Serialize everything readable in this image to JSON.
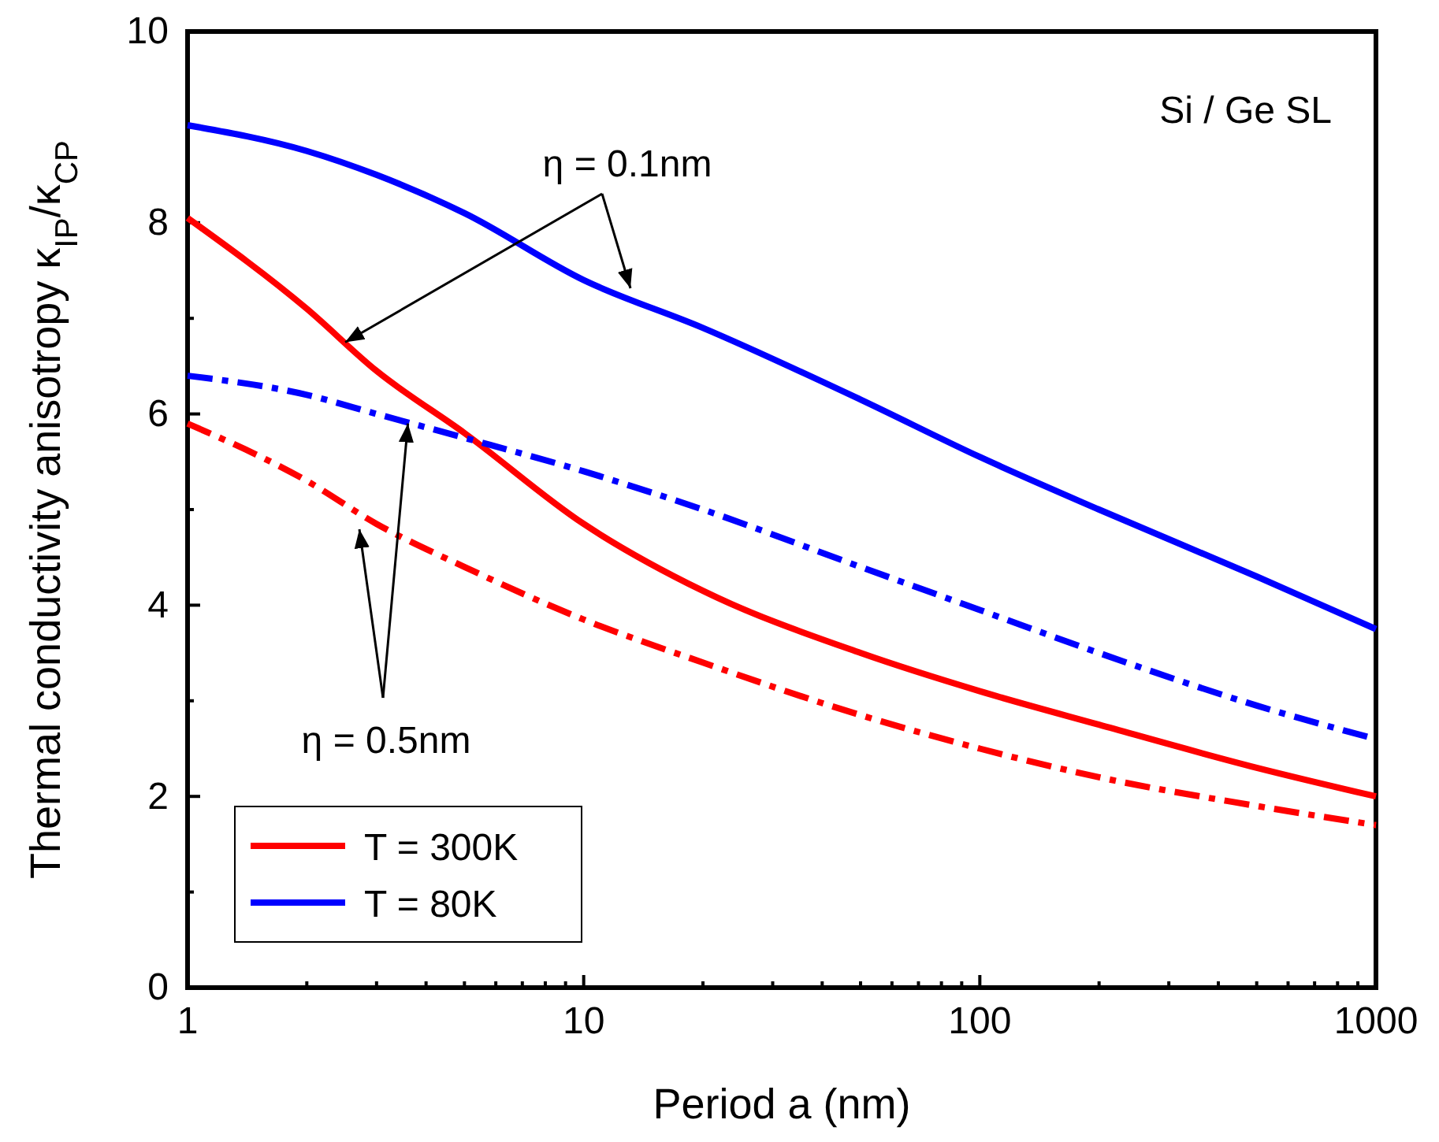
{
  "chart_data": {
    "type": "line",
    "xlabel": "Period a (nm)",
    "ylabel": "Thermal conductivity anisotropy κ$_{IP}$/κ$_{CP}$",
    "log": "x",
    "xlim": [
      1,
      1000
    ],
    "ylim": [
      0,
      10
    ],
    "xticks": [
      1,
      {
        "value": 2,
        "label": null
      },
      {
        "value": 3,
        "label": null
      },
      {
        "value": 4,
        "label": null
      },
      {
        "value": 5,
        "label": null
      },
      {
        "value": 6,
        "label": null
      },
      {
        "value": 7,
        "label": null
      },
      {
        "value": 8,
        "label": null
      },
      {
        "value": 9,
        "label": null
      },
      10,
      {
        "value": 20,
        "label": null
      },
      {
        "value": 30,
        "label": null
      },
      {
        "value": 40,
        "label": null
      },
      {
        "value": 50,
        "label": null
      },
      {
        "value": 60,
        "label": null
      },
      {
        "value": 70,
        "label": null
      },
      {
        "value": 80,
        "label": null
      },
      {
        "value": 90,
        "label": null
      },
      100,
      {
        "value": 200,
        "label": null
      },
      {
        "value": 300,
        "label": null
      },
      {
        "value": 400,
        "label": null
      },
      {
        "value": 500,
        "label": null
      },
      {
        "value": 600,
        "label": null
      },
      {
        "value": 700,
        "label": null
      },
      {
        "value": 800,
        "label": null
      },
      {
        "value": 900,
        "label": null
      },
      1000
    ],
    "yticks": [
      0,
      {
        "value": 1,
        "label": null
      },
      2,
      {
        "value": 3,
        "label": null
      },
      4,
      {
        "value": 5,
        "label": null
      },
      6,
      {
        "value": 7,
        "label": null
      },
      8,
      {
        "value": 9,
        "label": null
      },
      10
    ],
    "x": [
      1,
      2,
      3,
      5,
      10,
      20,
      50,
      100,
      200,
      500,
      1000
    ],
    "series": [
      {
        "name": "T = 300K",
        "color": "#ff0000",
        "line_style": "solid",
        "values": [
          8.05,
          7.1,
          6.45,
          5.8,
          4.85,
          4.15,
          3.5,
          3.1,
          2.75,
          2.3,
          2.0
        ]
      },
      {
        "name": "T = 80K",
        "color": "#0000ff",
        "line_style": "solid",
        "values": [
          9.02,
          8.75,
          8.5,
          8.1,
          7.4,
          6.9,
          6.15,
          5.55,
          5.0,
          4.3,
          3.75
        ]
      },
      {
        "color": "#0000ff",
        "line_style": "dashdot",
        "values": [
          6.4,
          6.2,
          6.0,
          5.75,
          5.4,
          5.0,
          4.4,
          3.95,
          3.5,
          2.95,
          2.6
        ]
      },
      {
        "color": "#ff0000",
        "line_style": "dashdot",
        "values": [
          5.9,
          5.3,
          4.85,
          4.4,
          3.85,
          3.4,
          2.85,
          2.5,
          2.2,
          1.9,
          1.7
        ]
      }
    ],
    "annotations": [
      "Si / Ge SL",
      {
        "text": "η = 0.1nm",
        "x": 2.5,
        "y": 6.75
      },
      {
        "text": "η = 0.5nm",
        "x": 3.6,
        "y": 5.9
      }
    ],
    "legend": "bottom left",
    "grid": false
  }
}
